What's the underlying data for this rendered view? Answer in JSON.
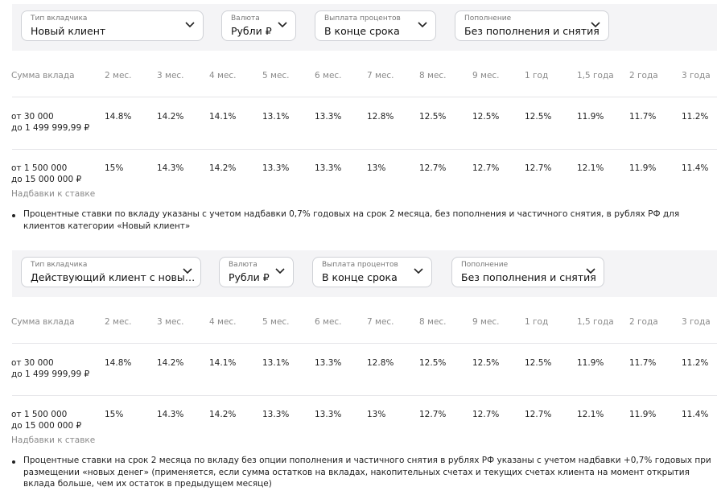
{
  "sections": [
    {
      "filters": [
        {
          "label": "Тип вкладчика",
          "value": "Новый клиент"
        },
        {
          "label": "Валюта",
          "value": "Рубли ₽"
        },
        {
          "label": "Выплата процентов",
          "value": "В конце срока"
        },
        {
          "label": "Пополнение",
          "value": "Без пополнения и снятия"
        }
      ],
      "table": {
        "header": [
          "Сумма вклада",
          "2 мес.",
          "3 мес.",
          "4 мес.",
          "5 мес.",
          "6 мес.",
          "7 мес.",
          "8 мес.",
          "9 мес.",
          "1 год",
          "1,5 года",
          "2 года",
          "3 года"
        ],
        "rows": [
          {
            "amount": [
              "от 30 000",
              "до 1 499 999,99 ₽"
            ],
            "rates": [
              "14.8%",
              "14.2%",
              "14.1%",
              "13.1%",
              "13.3%",
              "12.8%",
              "12.5%",
              "12.5%",
              "12.5%",
              "11.9%",
              "11.7%",
              "11.2%"
            ]
          },
          {
            "amount": [
              "от 1 500 000",
              "до 15 000 000 ₽"
            ],
            "rates": [
              "15%",
              "14.3%",
              "14.2%",
              "13.3%",
              "13.3%",
              "13%",
              "12.7%",
              "12.7%",
              "12.7%",
              "12.1%",
              "11.9%",
              "11.4%"
            ]
          }
        ]
      },
      "bonus_label": "Надбавки к ставке",
      "note": "Процентные ставки по вкладу указаны с учетом надбавки 0,7% годовых на срок 2 месяца, без пополнения и частичного снятия, в рублях РФ для клиентов категории «Новый клиент»"
    },
    {
      "filters": [
        {
          "label": "Тип вкладчика",
          "value": "Действующий клиент с новы…"
        },
        {
          "label": "Валюта",
          "value": "Рубли ₽"
        },
        {
          "label": "Выплата процентов",
          "value": "В конце срока"
        },
        {
          "label": "Пополнение",
          "value": "Без пополнения и снятия"
        }
      ],
      "table": {
        "header": [
          "Сумма вклада",
          "2 мес.",
          "3 мес.",
          "4 мес.",
          "5 мес.",
          "6 мес.",
          "7 мес.",
          "8 мес.",
          "9 мес.",
          "1 год",
          "1,5 года",
          "2 года",
          "3 года"
        ],
        "rows": [
          {
            "amount": [
              "от 30 000",
              "до 1 499 999,99 ₽"
            ],
            "rates": [
              "14.8%",
              "14.2%",
              "14.1%",
              "13.1%",
              "13.3%",
              "12.8%",
              "12.5%",
              "12.5%",
              "12.5%",
              "11.9%",
              "11.7%",
              "11.2%"
            ]
          },
          {
            "amount": [
              "от 1 500 000",
              "до 15 000 000 ₽"
            ],
            "rates": [
              "15%",
              "14.3%",
              "14.2%",
              "13.3%",
              "13.3%",
              "13%",
              "12.7%",
              "12.7%",
              "12.7%",
              "12.1%",
              "11.9%",
              "11.4%"
            ]
          }
        ]
      },
      "bonus_label": "Надбавки к ставке",
      "note": "Процентные ставки на срок 2 месяца по вкладу без опции пополнения и частичного снятия в рублях РФ указаны с учетом надбавки +0,7% годовых при размещении «новых денег» (применяется, если сумма остатков на вкладах, накопительных счетах и текущих счетах клиента на момент открытия вклада больше, чем их остаток в предыдущем месяце)"
    }
  ]
}
